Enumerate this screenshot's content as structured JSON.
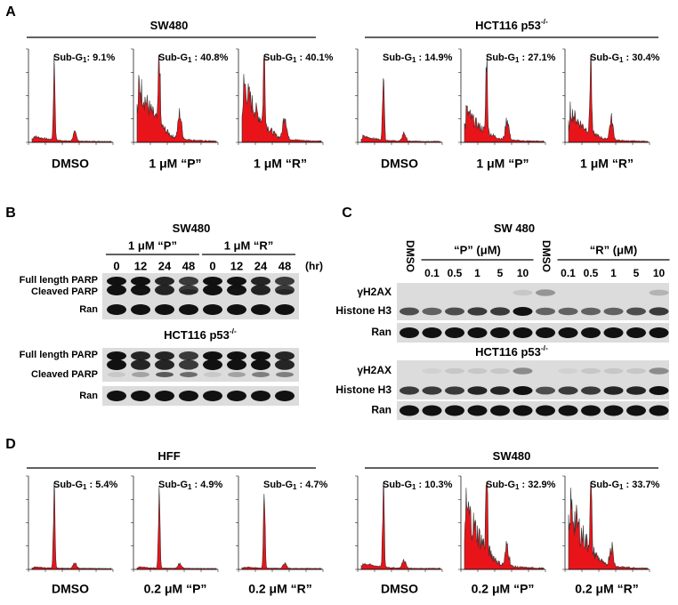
{
  "panels": {
    "A": {
      "label": "A",
      "groups": [
        {
          "title": {
            "text": "SW480"
          },
          "plots": [
            {
              "annotation": {
                "prefix": "Sub-G",
                "subscript": "1",
                "suffix": ": 9.1%"
              },
              "condition": "DMSO"
            },
            {
              "annotation": {
                "prefix": "Sub-G",
                "subscript": "1",
                "suffix": " : 40.8%"
              },
              "condition": "1 μM “P”"
            },
            {
              "annotation": {
                "prefix": "Sub-G",
                "subscript": "1",
                "suffix": " : 40.1%"
              },
              "condition": "1 μM “R”"
            }
          ]
        },
        {
          "title": {
            "text": "HCT116 p53",
            "sup": "-/-"
          },
          "plots": [
            {
              "annotation": {
                "prefix": "Sub-G",
                "subscript": "1",
                "suffix": " : 14.9%"
              },
              "condition": "DMSO"
            },
            {
              "annotation": {
                "prefix": "Sub-G",
                "subscript": "1",
                "suffix": " : 27.1%"
              },
              "condition": "1 μM “P”"
            },
            {
              "annotation": {
                "prefix": "Sub-G",
                "subscript": "1",
                "suffix": " : 30.4%"
              },
              "condition": "1 μM “R”"
            }
          ]
        }
      ]
    },
    "B": {
      "label": "B",
      "treatments": [
        "1 μM “P”",
        "1 μM “R”"
      ],
      "lanes": [
        "0",
        "12",
        "24",
        "48",
        "0",
        "12",
        "24",
        "48"
      ],
      "unit": "(hr)",
      "blots": [
        {
          "title": {
            "text": "SW480"
          },
          "rows": [
            "Full length PARP",
            "Cleaved PARP",
            "Ran"
          ]
        },
        {
          "title": {
            "text": "HCT116 p53",
            "sup": "-/-"
          },
          "rows": [
            "Full length PARP",
            "Cleaved PARP",
            "Ran"
          ]
        }
      ]
    },
    "C": {
      "label": "C",
      "dmso": [
        "DMSO",
        "DMSO"
      ],
      "treatments": [
        {
          "name": "“P” (μM)",
          "doses": [
            "0.1",
            "0.5",
            "1",
            "5",
            "10"
          ]
        },
        {
          "name": "“R” (μM)",
          "doses": [
            "0.1",
            "0.5",
            "1",
            "5",
            "10"
          ]
        }
      ],
      "blots": [
        {
          "title": {
            "text": "SW 480"
          },
          "rows": [
            "γH2AX",
            "Histone H3",
            "Ran"
          ]
        },
        {
          "title": {
            "text": "HCT116 p53",
            "sup": "-/-"
          },
          "rows": [
            "γH2AX",
            "Histone H3",
            "Ran"
          ]
        }
      ]
    },
    "D": {
      "label": "D",
      "groups": [
        {
          "title": {
            "text": "HFF"
          },
          "plots": [
            {
              "annotation": {
                "prefix": "Sub-G",
                "subscript": "1",
                "suffix": " : 5.4%"
              },
              "condition": "DMSO"
            },
            {
              "annotation": {
                "prefix": "Sub-G",
                "subscript": "1",
                "suffix": " : 4.9%"
              },
              "condition": "0.2 μM “P”"
            },
            {
              "annotation": {
                "prefix": "Sub-G",
                "subscript": "1",
                "suffix": " : 4.7%"
              },
              "condition": "0.2 μM “R”"
            }
          ]
        },
        {
          "title": {
            "text": "SW480"
          },
          "plots": [
            {
              "annotation": {
                "prefix": "Sub-G",
                "subscript": "1",
                "suffix": " : 10.3%"
              },
              "condition": "DMSO"
            },
            {
              "annotation": {
                "prefix": "Sub-G",
                "subscript": "1",
                "suffix": " : 32.9%"
              },
              "condition": "0.2 μM “P”"
            },
            {
              "annotation": {
                "prefix": "Sub-G",
                "subscript": "1",
                "suffix": " : 33.7%"
              },
              "condition": "0.2 μM “R”"
            }
          ]
        }
      ]
    }
  }
}
